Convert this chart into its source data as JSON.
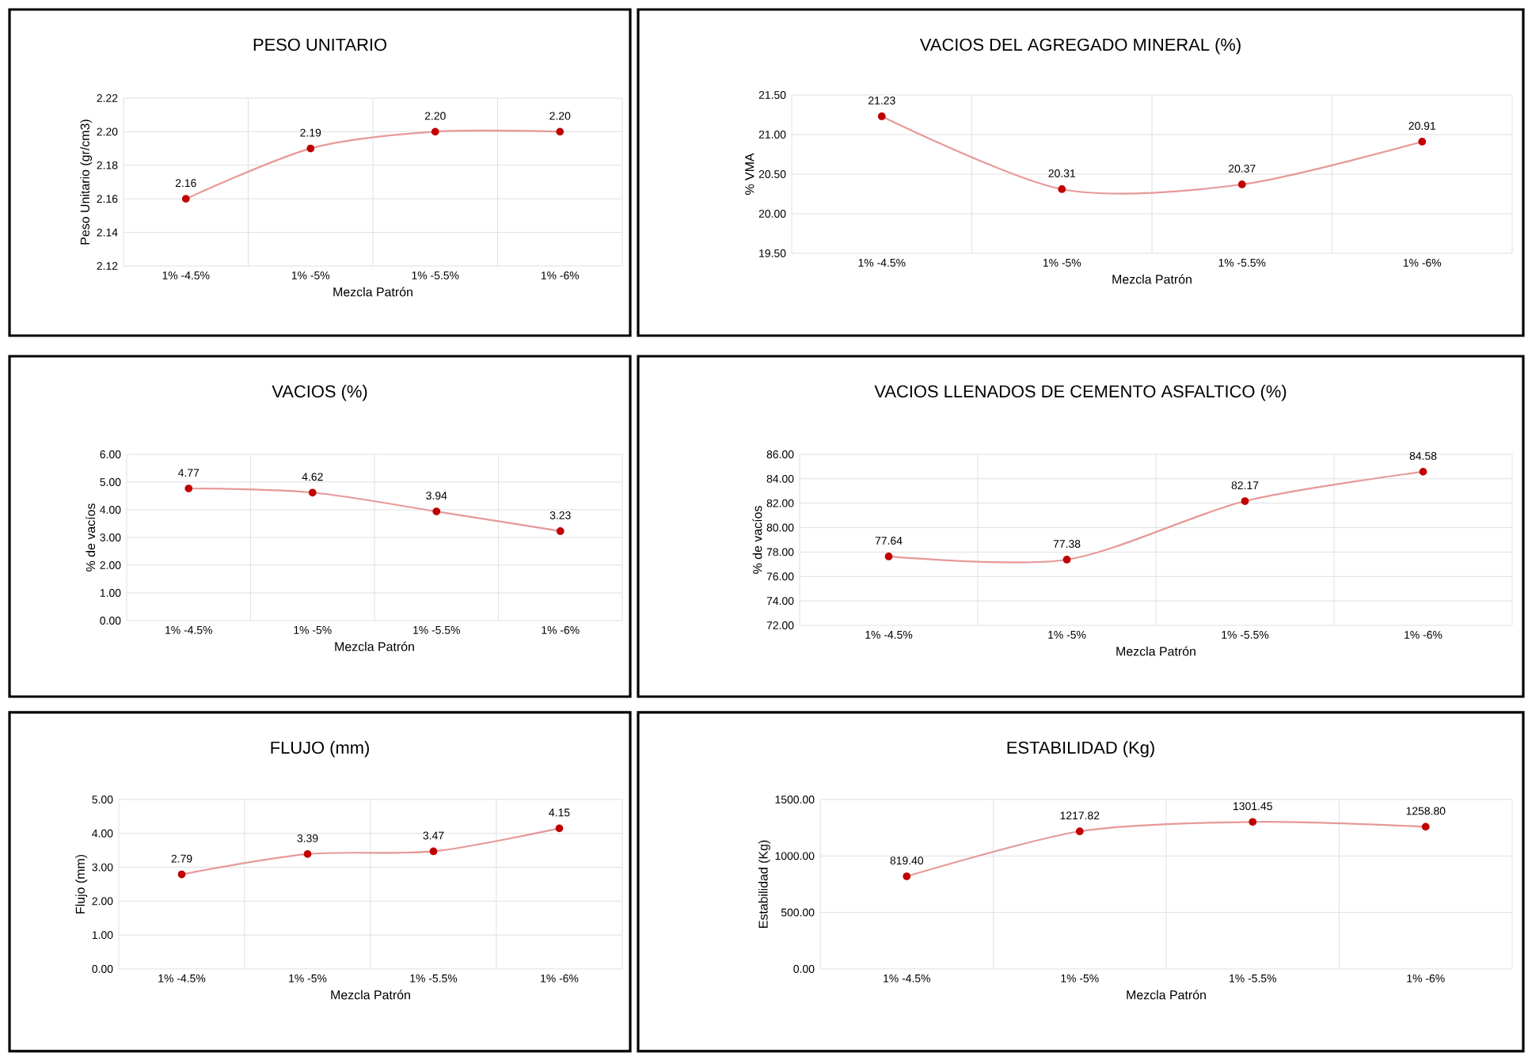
{
  "chart_data": [
    {
      "type": "line",
      "title": "PESO UNITARIO",
      "xlabel": "Mezcla Patrón",
      "ylabel": "Peso Unitario (gr/cm3)",
      "categories": [
        "1% -4.5%",
        "1% -5%",
        "1% -5.5%",
        "1% -6%"
      ],
      "series": [
        {
          "color": "#c00000",
          "values": [
            2.16,
            2.19,
            2.2,
            2.2
          ],
          "value_labels": [
            "2.16",
            "2.19",
            "2.20",
            "2.20"
          ]
        }
      ],
      "ylim": [
        2.12,
        2.22
      ],
      "yticks": [
        {
          "value": 2.12,
          "label": "2.12"
        },
        {
          "value": 2.14,
          "label": "2.14"
        },
        {
          "value": 2.16,
          "label": "2.16"
        },
        {
          "value": 2.18,
          "label": "2.18"
        },
        {
          "value": 2.2,
          "label": "2.20"
        },
        {
          "value": 2.22,
          "label": "2.22"
        }
      ],
      "grid": true,
      "marker": "circle"
    },
    {
      "type": "line",
      "title": "VACIOS DEL AGREGADO MINERAL (%)",
      "xlabel": "Mezcla Patrón",
      "ylabel": "% VMA",
      "categories": [
        "1% -4.5%",
        "1% -5%",
        "1% -5.5%",
        "1% -6%"
      ],
      "series": [
        {
          "color": "#c00000",
          "values": [
            21.23,
            20.31,
            20.37,
            20.91
          ],
          "value_labels": [
            "21.23",
            "20.31",
            "20.37",
            "20.91"
          ]
        }
      ],
      "ylim": [
        19.5,
        21.5
      ],
      "yticks": [
        {
          "value": 19.5,
          "label": "19.50"
        },
        {
          "value": 20,
          "label": "20.00"
        },
        {
          "value": 20.5,
          "label": "20.50"
        },
        {
          "value": 21,
          "label": "21.00"
        },
        {
          "value": 21.5,
          "label": "21.50"
        }
      ],
      "grid": true,
      "marker": "circle"
    },
    {
      "type": "line",
      "title": "VACIOS (%)",
      "xlabel": "Mezcla Patrón",
      "ylabel": "% de vacíos",
      "categories": [
        "1% -4.5%",
        "1% -5%",
        "1% -5.5%",
        "1% -6%"
      ],
      "series": [
        {
          "color": "#c00000",
          "values": [
            4.77,
            4.62,
            3.94,
            3.23
          ],
          "value_labels": [
            "4.77",
            "4.62",
            "3.94",
            "3.23"
          ]
        }
      ],
      "ylim": [
        0,
        6
      ],
      "yticks": [
        {
          "value": 0,
          "label": "0.00"
        },
        {
          "value": 1,
          "label": "1.00"
        },
        {
          "value": 2,
          "label": "2.00"
        },
        {
          "value": 3,
          "label": "3.00"
        },
        {
          "value": 4,
          "label": "4.00"
        },
        {
          "value": 5,
          "label": "5.00"
        },
        {
          "value": 6,
          "label": "6.00"
        }
      ],
      "grid": true,
      "marker": "circle"
    },
    {
      "type": "line",
      "title": "VACIOS LLENADOS DE CEMENTO ASFALTICO (%)",
      "xlabel": "Mezcla Patrón",
      "ylabel": "% de vacíos",
      "categories": [
        "1% -4.5%",
        "1% -5%",
        "1% -5.5%",
        "1% -6%"
      ],
      "series": [
        {
          "color": "#c00000",
          "values": [
            77.64,
            77.38,
            82.17,
            84.58
          ],
          "value_labels": [
            "77.64",
            "77.38",
            "82.17",
            "84.58"
          ]
        }
      ],
      "ylim": [
        72,
        86
      ],
      "yticks": [
        {
          "value": 72,
          "label": "72.00"
        },
        {
          "value": 74,
          "label": "74.00"
        },
        {
          "value": 76,
          "label": "76.00"
        },
        {
          "value": 78,
          "label": "78.00"
        },
        {
          "value": 80,
          "label": "80.00"
        },
        {
          "value": 82,
          "label": "82.00"
        },
        {
          "value": 84,
          "label": "84.00"
        },
        {
          "value": 86,
          "label": "86.00"
        }
      ],
      "grid": true,
      "marker": "circle"
    },
    {
      "type": "line",
      "title": "FLUJO (mm)",
      "xlabel": "Mezcla Patrón",
      "ylabel": "Flujo (mm)",
      "categories": [
        "1% -4.5%",
        "1% -5%",
        "1% -5.5%",
        "1% -6%"
      ],
      "series": [
        {
          "color": "#c00000",
          "values": [
            2.79,
            3.39,
            3.47,
            4.15
          ],
          "value_labels": [
            "2.79",
            "3.39",
            "3.47",
            "4.15"
          ]
        }
      ],
      "ylim": [
        0,
        5
      ],
      "yticks": [
        {
          "value": 0,
          "label": "0.00"
        },
        {
          "value": 1,
          "label": "1.00"
        },
        {
          "value": 2,
          "label": "2.00"
        },
        {
          "value": 3,
          "label": "3.00"
        },
        {
          "value": 4,
          "label": "4.00"
        },
        {
          "value": 5,
          "label": "5.00"
        }
      ],
      "grid": true,
      "marker": "circle"
    },
    {
      "type": "line",
      "title": "ESTABILIDAD (Kg)",
      "xlabel": "Mezcla Patrón",
      "ylabel": "Estabilidad (Kg)",
      "categories": [
        "1% -4.5%",
        "1% -5%",
        "1% -5.5%",
        "1% -6%"
      ],
      "series": [
        {
          "color": "#c00000",
          "values": [
            819.4,
            1217.82,
            1301.45,
            1258.8
          ],
          "value_labels": [
            "819.40",
            "1217.82",
            "1301.45",
            "1258.80"
          ]
        }
      ],
      "ylim": [
        0,
        1500
      ],
      "yticks": [
        {
          "value": 0,
          "label": "0.00"
        },
        {
          "value": 500,
          "label": "500.00"
        },
        {
          "value": 1000,
          "label": "1000.00"
        },
        {
          "value": 1500,
          "label": "1500.00"
        }
      ],
      "grid": true,
      "marker": "circle"
    }
  ]
}
